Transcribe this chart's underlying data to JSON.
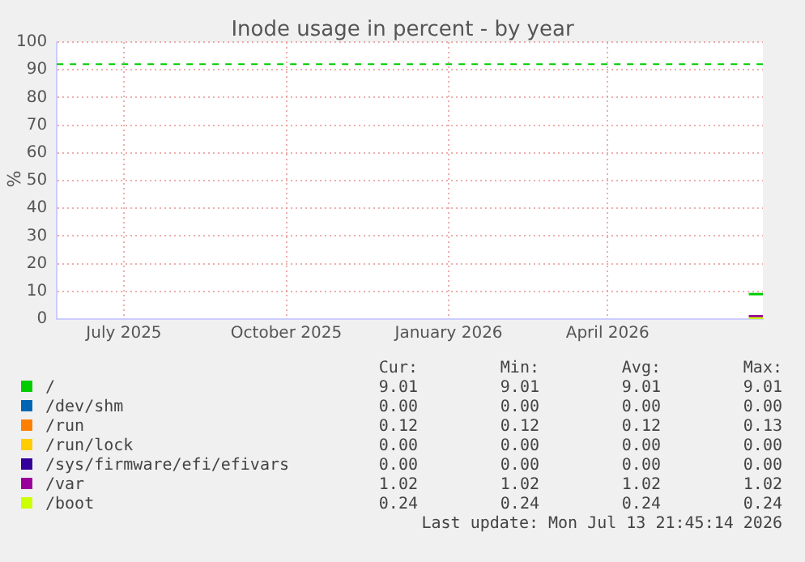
{
  "chart_data": {
    "type": "line",
    "title": "Inode usage in percent - by year",
    "ylabel": "%",
    "xlim": [
      "2025-06-08",
      "2026-07-13"
    ],
    "xticks": [
      {
        "value": "2025-07-16",
        "label": "July 2025"
      },
      {
        "value": "2025-10-16",
        "label": "October 2025"
      },
      {
        "value": "2026-01-16",
        "label": "January 2026"
      },
      {
        "value": "2026-04-16",
        "label": "April 2026"
      }
    ],
    "ylim": [
      0,
      100
    ],
    "yticks": [
      0,
      10,
      20,
      30,
      40,
      50,
      60,
      70,
      80,
      90,
      100
    ],
    "grid": true,
    "legend": "bottom",
    "series": [
      {
        "name": "/",
        "color": "#00cc00",
        "x": [
          "2026-07-05",
          "2026-07-13"
        ],
        "values": [
          9.01,
          9.01
        ]
      },
      {
        "name": "/dev/shm",
        "color": "#0066b3",
        "values": [
          null,
          null
        ]
      },
      {
        "name": "/run",
        "color": "#ff8000",
        "values": [
          null,
          null
        ]
      },
      {
        "name": "/run/lock",
        "color": "#ffcc00",
        "values": [
          null,
          null
        ]
      },
      {
        "name": "/sys/firmware/efi/efivars",
        "color": "#330099",
        "values": [
          null,
          null
        ]
      },
      {
        "name": "/var",
        "color": "#990099",
        "x": [
          "2026-07-05",
          "2026-07-13"
        ],
        "values": [
          1.02,
          1.02
        ]
      },
      {
        "name": "/boot",
        "color": "#ccff00",
        "x": [
          "2026-07-05",
          "2026-07-13"
        ],
        "values": [
          0.24,
          0.24
        ]
      }
    ],
    "ref_lines": [
      {
        "axis": "y",
        "value": 92,
        "color": "#00cc00",
        "line_style": "dashed"
      }
    ],
    "annotations": [
      "Cur:",
      "Min:",
      "Avg:",
      "Max:",
      "9.01",
      "9.01",
      "9.01",
      "9.01",
      "0.00",
      "0.00",
      "0.00",
      "0.00",
      "0.12",
      "0.12",
      "0.12",
      "0.13",
      "0.00",
      "0.00",
      "0.00",
      "0.00",
      "0.00",
      "0.00",
      "0.00",
      "0.00",
      "1.02",
      "1.02",
      "1.02",
      "1.02",
      "0.24",
      "0.24",
      "0.24",
      "0.24",
      "Last update: Mon Jul 13 21:45:14 2026"
    ]
  }
}
